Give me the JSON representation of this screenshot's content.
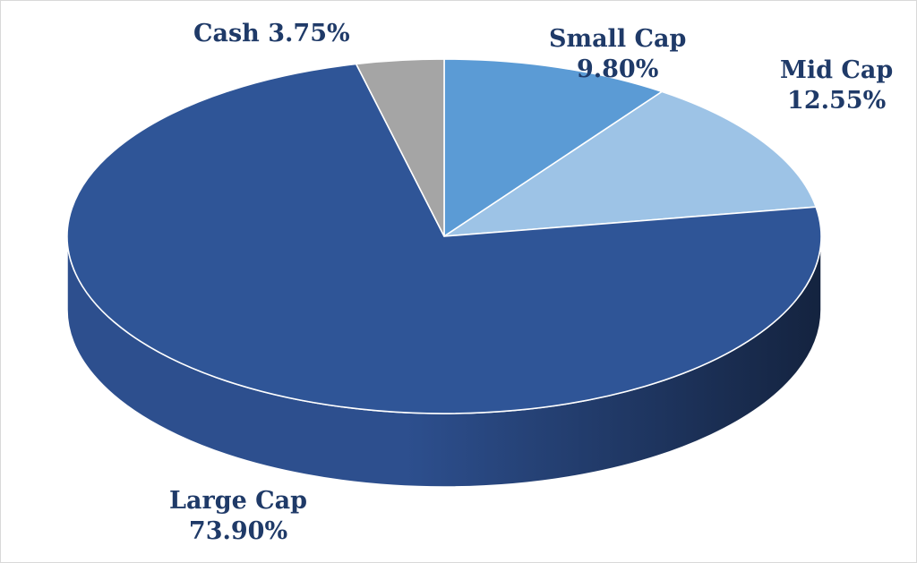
{
  "chart_data": {
    "type": "pie",
    "title": "",
    "slices": [
      {
        "name": "Small Cap",
        "value": 9.8,
        "label_name": "Small Cap",
        "label_value": "9.80%",
        "color": "#5b9bd5"
      },
      {
        "name": "Mid Cap",
        "value": 12.55,
        "label_name": "Mid Cap",
        "label_value": "12.55%",
        "color": "#9dc3e6"
      },
      {
        "name": "Large Cap",
        "value": 73.9,
        "label_name": "Large Cap",
        "label_value": "73.90%",
        "color": "#2f5597"
      },
      {
        "name": "Cash",
        "value": 3.75,
        "label_name": "Cash",
        "label_value": "3.75%",
        "color": "#a5a5a5"
      }
    ],
    "style": "3d",
    "label_color": "#1f3a68",
    "side_color_dark": "#14233f",
    "side_color_light": "#2d4f8e"
  }
}
